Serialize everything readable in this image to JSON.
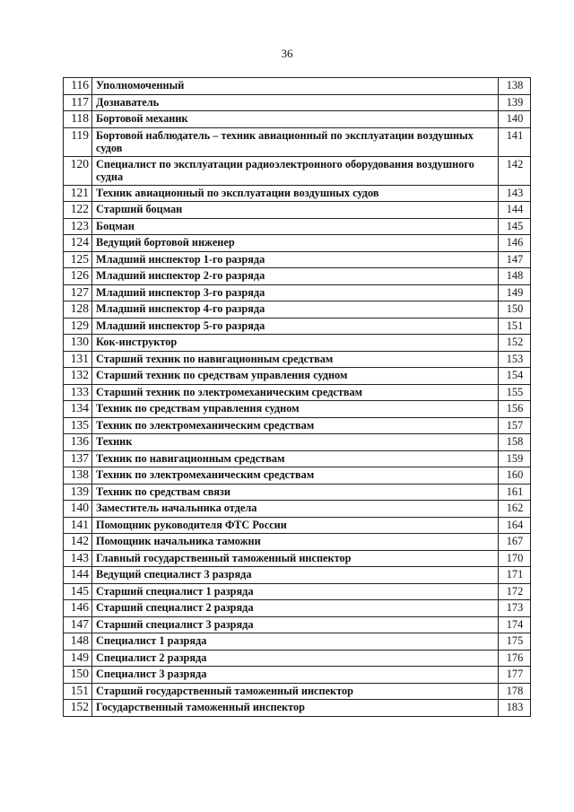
{
  "page_number": "36",
  "rows": [
    {
      "num": "116",
      "title": "Уполномоченный",
      "page": "138"
    },
    {
      "num": "117",
      "title": "Дознаватель",
      "page": "139"
    },
    {
      "num": "118",
      "title": "Бортовой механик",
      "page": "140"
    },
    {
      "num": "119",
      "title": "Бортовой наблюдатель – техник авиационный по эксплуатации воздушных судов",
      "page": "141"
    },
    {
      "num": "120",
      "title": "Специалист по эксплуатации радиоэлектронного оборудования воздушного судна",
      "page": "142"
    },
    {
      "num": "121",
      "title": "Техник авиационный по эксплуатации воздушных судов",
      "page": "143"
    },
    {
      "num": "122",
      "title": "Старший боцман",
      "page": "144"
    },
    {
      "num": "123",
      "title": "Боцман",
      "page": "145"
    },
    {
      "num": "124",
      "title": "Ведущий бортовой инженер",
      "page": "146"
    },
    {
      "num": "125",
      "title": "Младший инспектор 1-го разряда",
      "page": "147"
    },
    {
      "num": "126",
      "title": "Младший инспектор 2-го разряда",
      "page": "148"
    },
    {
      "num": "127",
      "title": "Младший инспектор 3-го разряда",
      "page": "149"
    },
    {
      "num": "128",
      "title": "Младший инспектор 4-го разряда",
      "page": "150"
    },
    {
      "num": "129",
      "title": "Младший инспектор 5-го разряда",
      "page": "151"
    },
    {
      "num": "130",
      "title": "Кок-инструктор",
      "page": "152"
    },
    {
      "num": "131",
      "title": "Старший техник по навигационным средствам",
      "page": "153"
    },
    {
      "num": "132",
      "title": "Старший техник по средствам управления судном",
      "page": "154"
    },
    {
      "num": "133",
      "title": "Старший техник по электромеханическим средствам",
      "page": "155"
    },
    {
      "num": "134",
      "title": "Техник по средствам управления судном",
      "page": "156"
    },
    {
      "num": "135",
      "title": "Техник по электромеханическим средствам",
      "page": "157"
    },
    {
      "num": "136",
      "title": "Техник",
      "page": "158"
    },
    {
      "num": "137",
      "title": "Техник по навигационным средствам",
      "page": "159"
    },
    {
      "num": "138",
      "title": "Техник по электромеханическим средствам",
      "page": "160"
    },
    {
      "num": "139",
      "title": "Техник по средствам связи",
      "page": "161"
    },
    {
      "num": "140",
      "title": "Заместитель начальника отдела",
      "page": "162"
    },
    {
      "num": "141",
      "title": "Помощник руководителя ФТС России",
      "page": "164"
    },
    {
      "num": "142",
      "title": "Помощник начальника таможни",
      "page": "167"
    },
    {
      "num": "143",
      "title": "Главный государственный таможенный инспектор",
      "page": "170"
    },
    {
      "num": "144",
      "title": "Ведущий специалист 3 разряда",
      "page": "171"
    },
    {
      "num": "145",
      "title": "Старший специалист 1 разряда",
      "page": "172"
    },
    {
      "num": "146",
      "title": "Старший специалист 2 разряда",
      "page": "173"
    },
    {
      "num": "147",
      "title": "Старший специалист 3 разряда",
      "page": "174"
    },
    {
      "num": "148",
      "title": "Специалист 1 разряда",
      "page": "175"
    },
    {
      "num": "149",
      "title": "Специалист 2 разряда",
      "page": "176"
    },
    {
      "num": "150",
      "title": "Специалист 3 разряда",
      "page": "177"
    },
    {
      "num": "151",
      "title": "Старший государственный таможенный инспектор",
      "page": "178"
    },
    {
      "num": "152",
      "title": "Государственный таможенный инспектор",
      "page": "183"
    }
  ]
}
